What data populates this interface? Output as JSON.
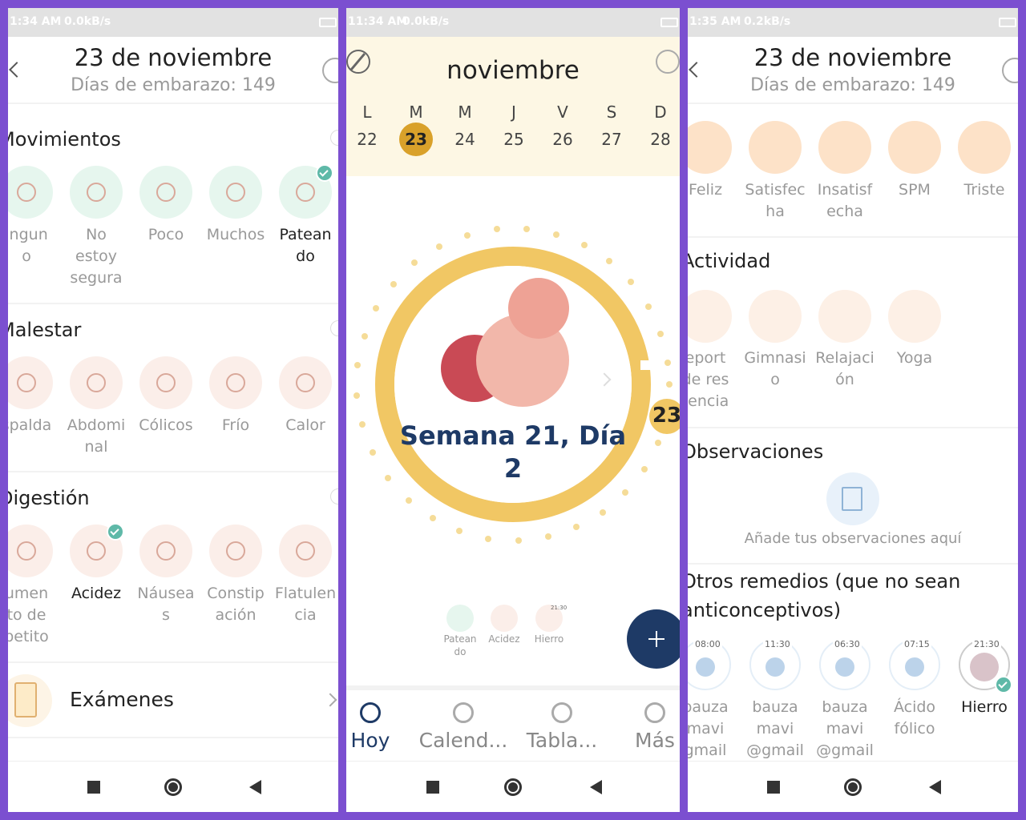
{
  "screens": [
    {
      "status": {
        "time": "1:34 AM",
        "speed": "0.0kB/s"
      },
      "header": {
        "title": "23 de noviembre",
        "subtitle": "Días de embarazo: 149"
      },
      "sections": [
        {
          "title": "Movimientos",
          "items": [
            "ingun\no",
            "No\nestoy\nsegura",
            "Poco",
            "Muchos",
            "Patean\ndo"
          ]
        },
        {
          "title": "Malestar",
          "items": [
            "spalda",
            "Abdomi\nnal",
            "Cólicos",
            "Frío",
            "Calor"
          ]
        },
        {
          "title": "Digestión",
          "items": [
            "umen\nto de\npetito",
            "Acidez",
            "Náusea\ns",
            "Constip\nación",
            "Flatulen\ncia"
          ]
        }
      ],
      "exams": "Exámenes"
    },
    {
      "status": {
        "time": "11:34 AM",
        "speed": "0.0kB/s"
      },
      "month": "noviembre",
      "weekdays": [
        "L",
        "M",
        "M",
        "J",
        "V",
        "S",
        "D"
      ],
      "dates": [
        "22",
        "23",
        "24",
        "25",
        "26",
        "27",
        "28"
      ],
      "week": "Semana 21, Día\n2",
      "badge": "23",
      "logged": [
        {
          "name": "Patean\ndo"
        },
        {
          "name": "Acidez"
        },
        {
          "name": "Hierro",
          "time": "21:30"
        }
      ],
      "nav": [
        "Hoy",
        "Calend...",
        "Tabla...",
        "Más"
      ]
    },
    {
      "status": {
        "time": "1:35 AM",
        "speed": "0.2kB/s"
      },
      "header": {
        "title": "23 de noviembre",
        "subtitle": "Días de embarazo: 149"
      },
      "moods": [
        "Feliz",
        "Satisfec\nha",
        "Insatisf\necha",
        "SPM",
        "Triste"
      ],
      "activity": {
        "title": "Actividad",
        "items": [
          "eport\nde res\ntencia",
          "Gimnasi\no",
          "Relajaci\nón",
          "Yoga"
        ]
      },
      "notes": {
        "title": "Observaciones",
        "placeholder": "Añade tus observaciones aquí"
      },
      "remedies": {
        "title": "Otros remedios (que no sean\nanticonceptivos)",
        "items": [
          {
            "time": "08:00",
            "name": "bauza\nmavi\ngmail"
          },
          {
            "time": "11:30",
            "name": "bauza\nmavi\n@gmail"
          },
          {
            "time": "06:30",
            "name": "bauza\nmavi\n@gmail"
          },
          {
            "time": "07:15",
            "name": "Ácido\nfólico"
          },
          {
            "time": "21:30",
            "name": "Hierro"
          }
        ]
      }
    }
  ]
}
